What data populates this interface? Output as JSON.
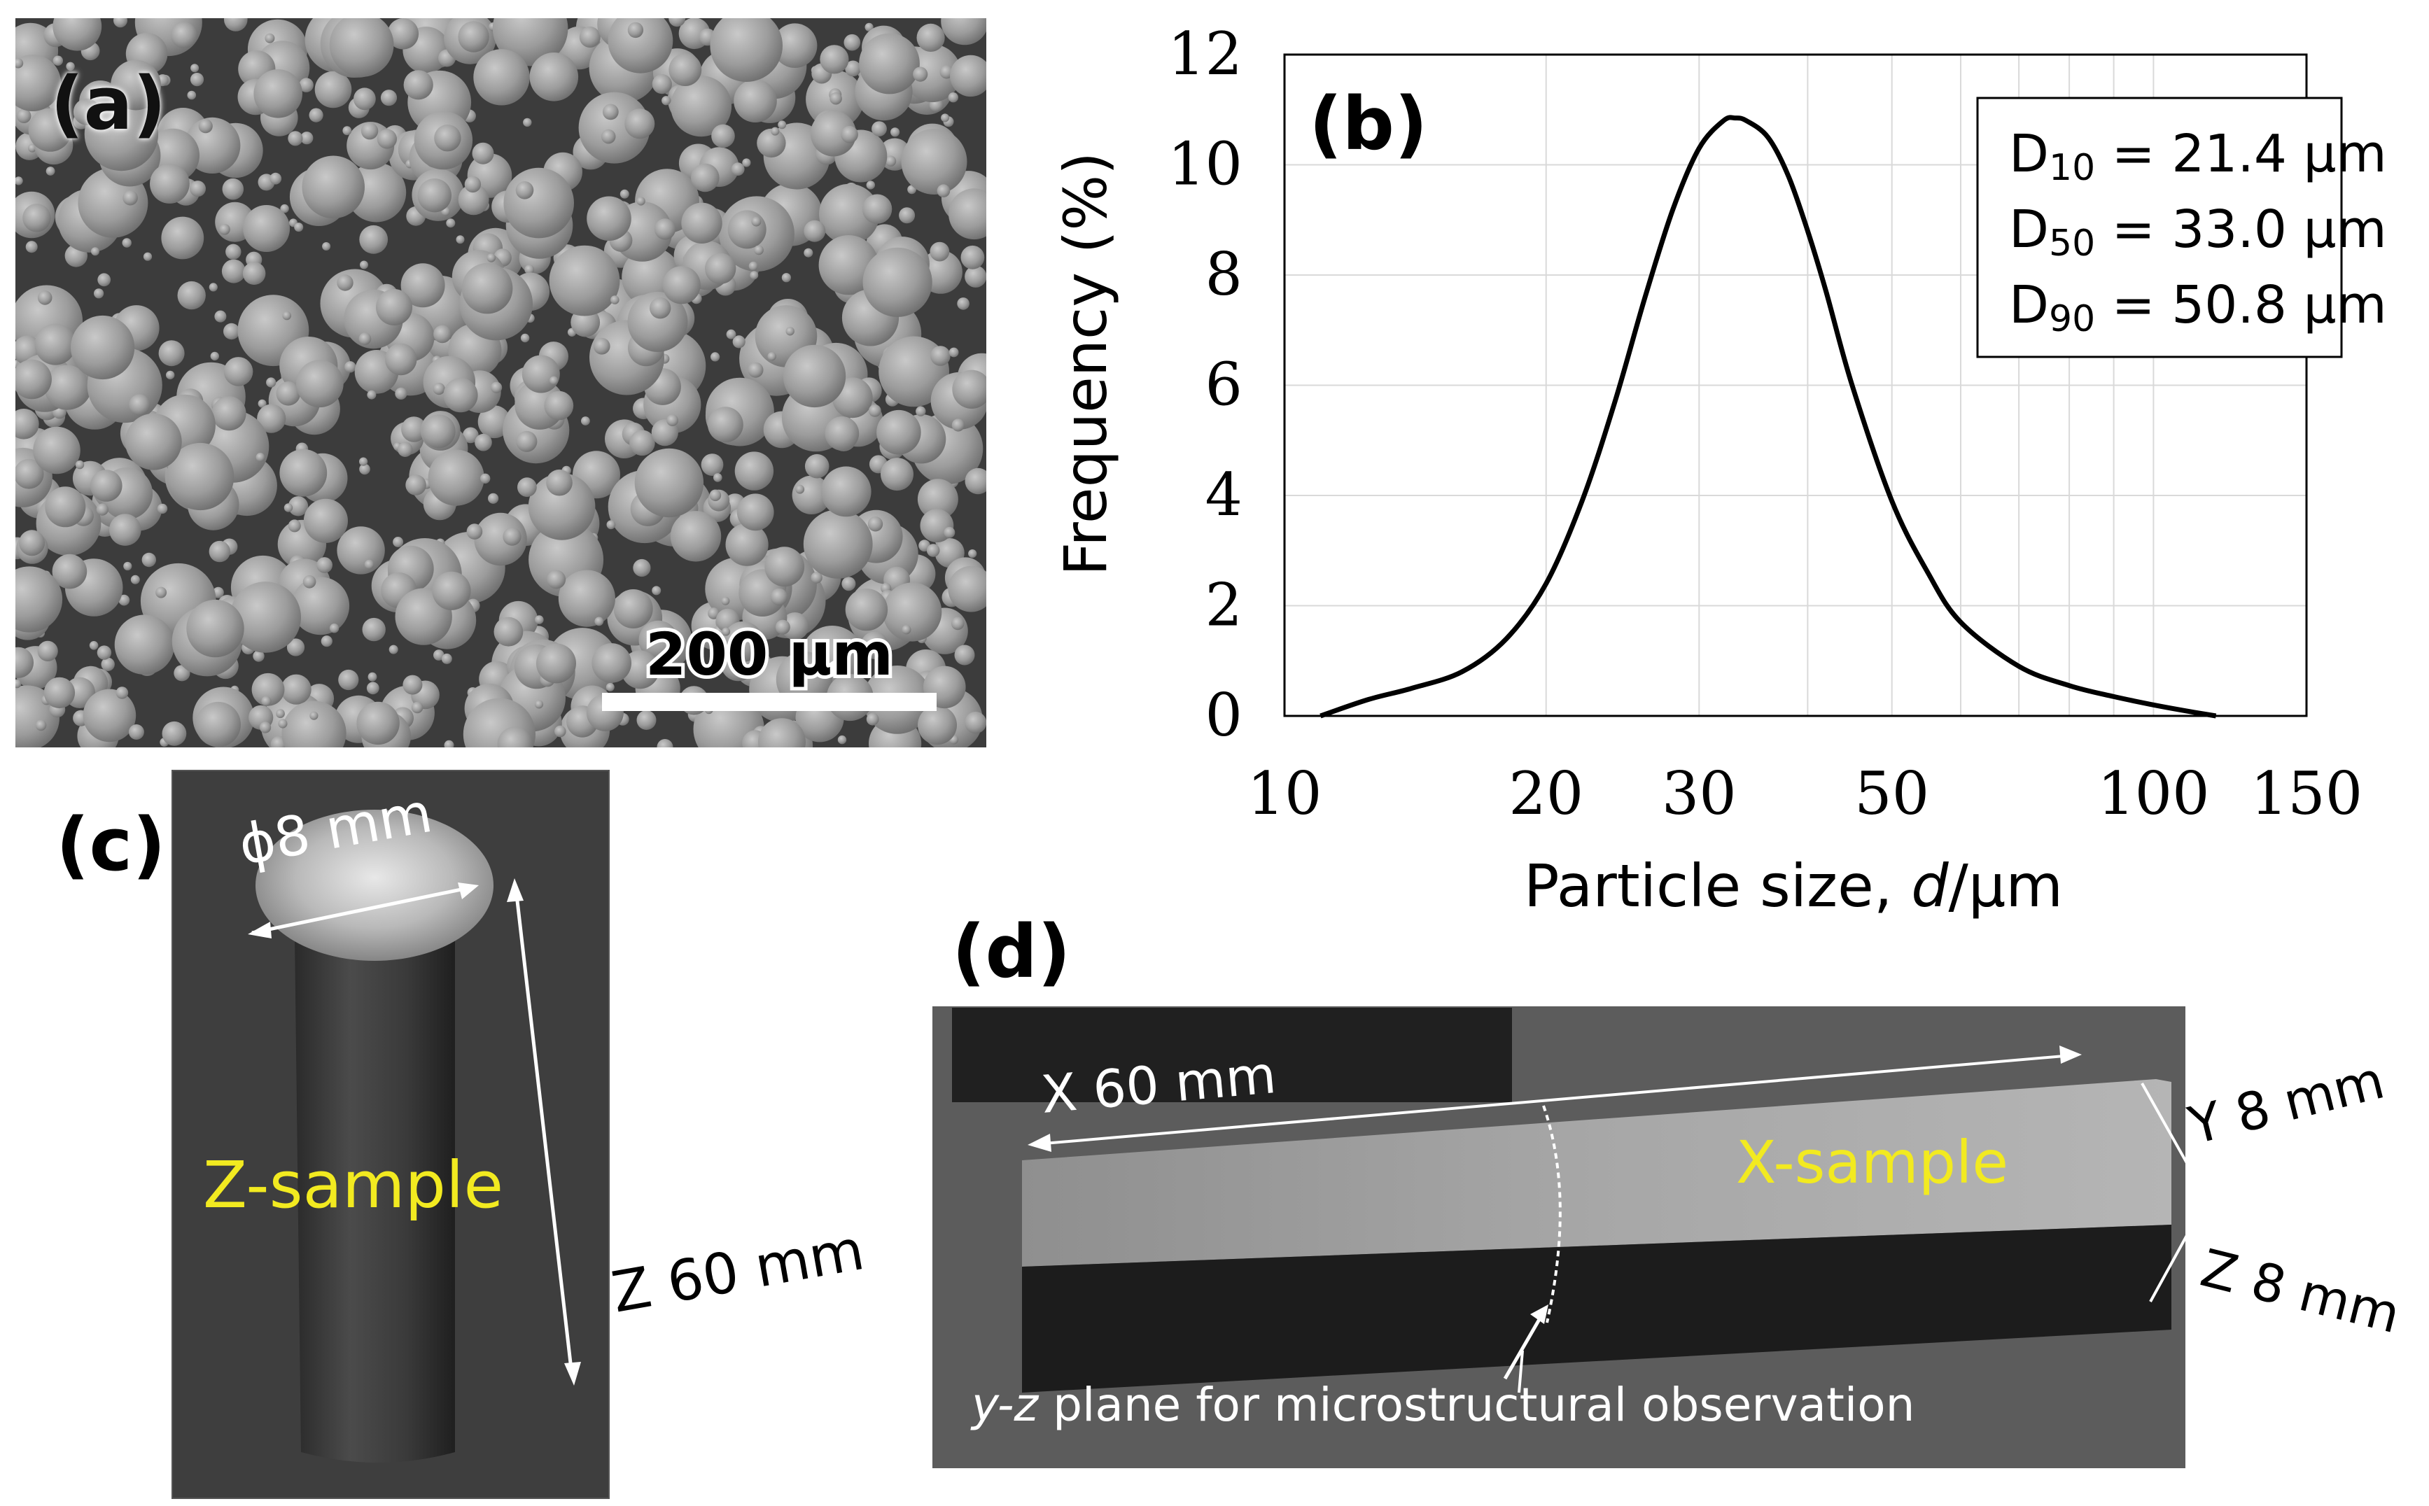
{
  "panels": {
    "a": {
      "letter": "(a)",
      "scale_bar_label": "200 µm"
    },
    "b": {
      "letter": "(b)"
    },
    "c": {
      "letter": "(c)",
      "diameter_label": "ϕ8 mm",
      "sample_label": "Z-sample",
      "length_label": "Z 60 mm"
    },
    "d": {
      "letter": "(d)",
      "x_label": "X 60 mm",
      "sample_label": "X-sample",
      "y_label": "Y 8 mm",
      "z_label": "Z 8 mm",
      "plane_label_italic": "y-z",
      "plane_label_rest": " plane for microstructural observation"
    }
  },
  "colors": {
    "sample_label": "#f2ea20",
    "curve": "#000000",
    "sem_background": "#3c3c3c",
    "particle": "#9a9a9a"
  },
  "chart_data": {
    "type": "line",
    "xlabel_prefix": "Particle size, ",
    "xlabel_italic": "d",
    "xlabel_suffix": "/µm",
    "ylabel": "Frequency (%)",
    "x_scale": "log",
    "xlim": [
      10,
      150
    ],
    "ylim": [
      0,
      12
    ],
    "x_ticks": [
      10,
      20,
      30,
      50,
      100,
      150
    ],
    "y_ticks": [
      0,
      2,
      4,
      6,
      8,
      10,
      12
    ],
    "grid": true,
    "annotations": [
      {
        "prefix": "D",
        "sub": "10",
        "text": " = 21.4 µm"
      },
      {
        "prefix": "D",
        "sub": "50",
        "text": " = 33.0 µm"
      },
      {
        "prefix": "D",
        "sub": "90",
        "text": " = 50.8 µm"
      }
    ],
    "series": [
      {
        "x": [
          11.0,
          12.5,
          14.0,
          16.0,
          18.0,
          20.0,
          22.0,
          24.0,
          26.0,
          28.0,
          30.0,
          32.0,
          33.0,
          34.0,
          36.0,
          38.0,
          40.0,
          42.0,
          45.0,
          50.0,
          55.0,
          60.0,
          70.0,
          80.0,
          90.0,
          100.0,
          110.0,
          118.0
        ],
        "values": [
          0.0,
          0.3,
          0.5,
          0.8,
          1.4,
          2.4,
          3.9,
          5.7,
          7.6,
          9.2,
          10.3,
          10.8,
          10.85,
          10.8,
          10.5,
          9.8,
          8.8,
          7.7,
          6.0,
          3.9,
          2.6,
          1.7,
          0.9,
          0.55,
          0.35,
          0.2,
          0.08,
          0.0
        ]
      }
    ]
  }
}
